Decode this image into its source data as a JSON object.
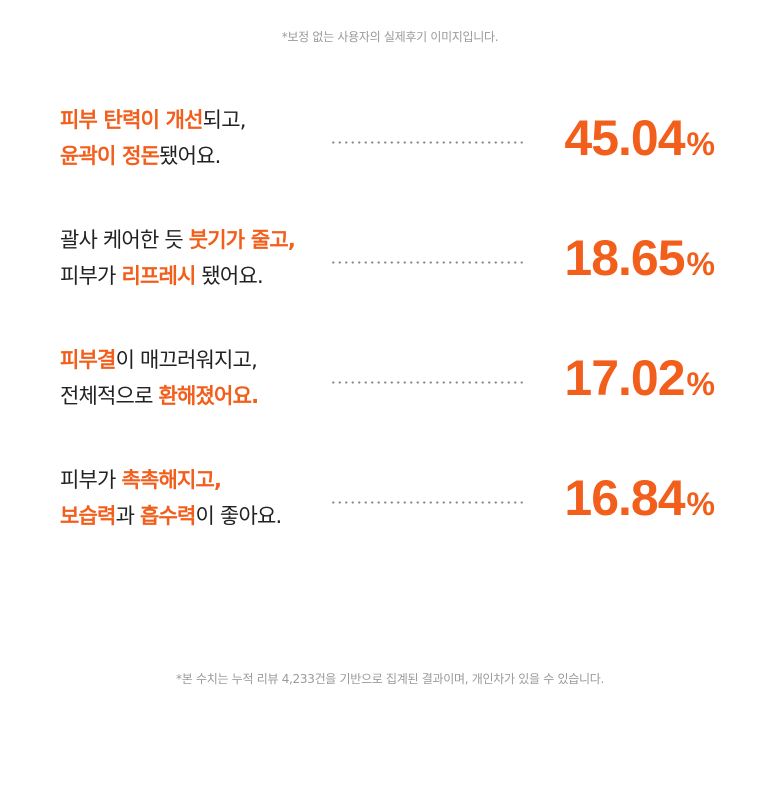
{
  "top_note": "*보정 없는 사용자의 실제후기 이미지입니다.",
  "bottom_note": "*본 수치는 누적 리뷰 4,233건을 기반으로 집계된 결과이며, 개인차가 있을 수 있습니다.",
  "accent_color": "#f25f1c",
  "stats": [
    {
      "line1": [
        {
          "t": "피부 탄력이 개선",
          "hl": true
        },
        {
          "t": "되고,",
          "hl": false
        }
      ],
      "line2": [
        {
          "t": "윤곽이 정돈",
          "hl": true
        },
        {
          "t": "됐어요.",
          "hl": false
        }
      ],
      "value": "45.04",
      "unit": "%"
    },
    {
      "line1": [
        {
          "t": "괄사 케어한 듯 ",
          "hl": false
        },
        {
          "t": "붓기가 줄고,",
          "hl": true
        }
      ],
      "line2": [
        {
          "t": "피부가 ",
          "hl": false
        },
        {
          "t": "리프레시",
          "hl": true
        },
        {
          "t": " 됐어요.",
          "hl": false
        }
      ],
      "value": "18.65",
      "unit": "%"
    },
    {
      "line1": [
        {
          "t": "피부결",
          "hl": true
        },
        {
          "t": "이 매끄러워지고,",
          "hl": false
        }
      ],
      "line2": [
        {
          "t": "전체적으로 ",
          "hl": false
        },
        {
          "t": "환해졌어요.",
          "hl": true
        }
      ],
      "value": "17.02",
      "unit": "%"
    },
    {
      "line1": [
        {
          "t": "피부가 ",
          "hl": false
        },
        {
          "t": "촉촉해지고,",
          "hl": true
        }
      ],
      "line2": [
        {
          "t": "보습력",
          "hl": true
        },
        {
          "t": "과 ",
          "hl": false
        },
        {
          "t": "흡수력",
          "hl": true
        },
        {
          "t": "이 좋아요.",
          "hl": false
        }
      ],
      "value": "16.84",
      "unit": "%"
    }
  ]
}
